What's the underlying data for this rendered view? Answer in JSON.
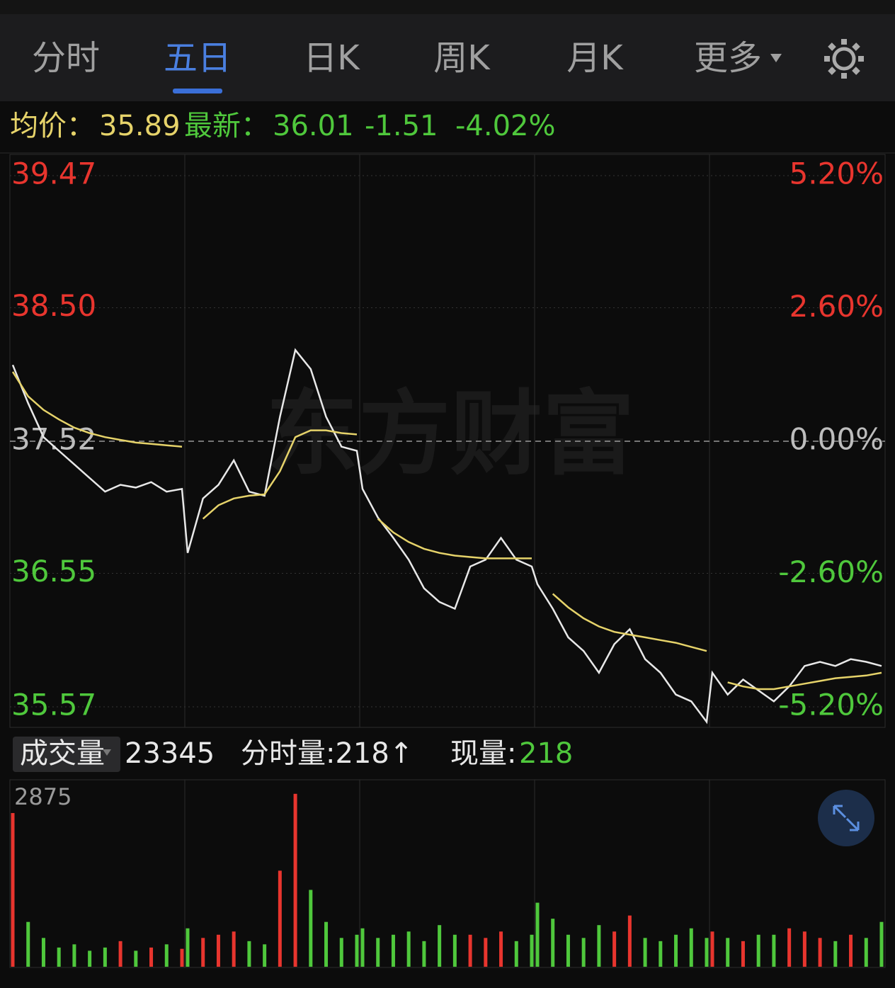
{
  "tabs": [
    "分时",
    "五日",
    "日K",
    "周K",
    "月K",
    "更多"
  ],
  "active_tab": 1,
  "quote": {
    "avg_label": "均价：",
    "avg": "35.89",
    "latest_label": "最新：",
    "latest": "36.01",
    "change": "-1.51",
    "change_pct": "-4.02%"
  },
  "watermark": "东方财富",
  "chart_data": {
    "type": "line",
    "ylim": [
      35.57,
      39.47
    ],
    "yticks": [
      39.47,
      {
        "value": 38.5,
        "label": "38.50"
      },
      37.52,
      36.55,
      35.57
    ],
    "y2lim": [
      -5.2,
      5.2
    ],
    "y2ticks": [
      {
        "value": 5.2,
        "label": "5.20%"
      },
      {
        "value": 2.6,
        "label": "2.60%"
      },
      {
        "value": 0,
        "label": "0.00%"
      },
      {
        "value": -2.6,
        "label": "-2.60%"
      },
      {
        "value": -5.2,
        "label": "-5.20%"
      }
    ],
    "series": [
      {
        "color": "#e8e8e8",
        "values": [
          38.08,
          37.8,
          37.55,
          37.45,
          37.35,
          37.25,
          37.15,
          37.2,
          37.18,
          37.22,
          37.15,
          37.17,
          36.7,
          37.1,
          37.2,
          37.38,
          37.15,
          37.12,
          37.7,
          38.19,
          38.05,
          37.7,
          37.48,
          37.45,
          37.17,
          36.96,
          36.81,
          36.65,
          36.44,
          36.34,
          36.29,
          36.6,
          36.65,
          36.81,
          36.65,
          36.6,
          36.47,
          36.29,
          36.08,
          35.98,
          35.82,
          36.03,
          36.14,
          35.92,
          35.82,
          35.66,
          35.61,
          35.46,
          35.82,
          35.66,
          35.77,
          35.69,
          35.61,
          35.72,
          35.87,
          35.9,
          35.87,
          35.92,
          35.9,
          35.87
        ]
      },
      {
        "color": "#e6d36a",
        "values": [
          38.03,
          37.85,
          37.75,
          37.68,
          37.62,
          37.58,
          37.55,
          37.53,
          37.51,
          37.5,
          37.49,
          37.48,
          null,
          36.95,
          37.05,
          37.1,
          37.12,
          37.13,
          37.3,
          37.55,
          37.6,
          37.6,
          37.58,
          37.57,
          null,
          36.95,
          36.85,
          36.78,
          36.73,
          36.7,
          36.68,
          36.67,
          36.66,
          36.66,
          36.66,
          36.66,
          null,
          36.4,
          36.3,
          36.22,
          36.16,
          36.12,
          36.1,
          36.08,
          36.06,
          36.04,
          36.01,
          35.98,
          null,
          35.75,
          35.72,
          35.7,
          35.7,
          35.72,
          35.74,
          35.76,
          35.78,
          35.79,
          35.8,
          35.82
        ]
      }
    ]
  },
  "volume_header": {
    "label": "成交量",
    "total": "23345",
    "minute_volume": "分时量:218↑",
    "current_label": "现量:",
    "current": "218"
  },
  "volume_chart": {
    "type": "bar",
    "ylim": [
      0,
      2875
    ],
    "yticks": [
      2875
    ],
    "up_color": "#e8352e",
    "down_color": "#4fc83c",
    "values": [
      2400,
      700,
      450,
      300,
      350,
      250,
      300,
      400,
      250,
      300,
      350,
      280,
      600,
      450,
      500,
      550,
      400,
      350,
      1500,
      2700,
      1200,
      700,
      450,
      500,
      600,
      450,
      500,
      550,
      400,
      650,
      500,
      500,
      450,
      550,
      400,
      500,
      1000,
      750,
      500,
      450,
      650,
      550,
      800,
      450,
      400,
      500,
      600,
      450,
      550,
      450,
      400,
      500,
      500,
      600,
      550,
      450,
      400,
      500,
      450,
      700
    ]
  }
}
